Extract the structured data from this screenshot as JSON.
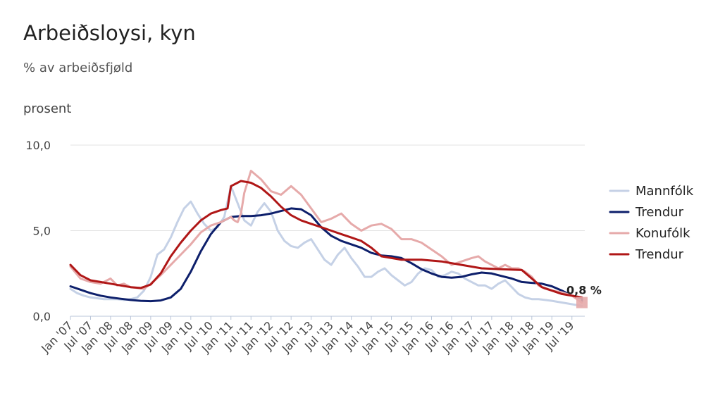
{
  "chart_data": {
    "type": "line",
    "title": "Arbeiðsloysi, kyn",
    "subtitle": "% av arbeiðsfjøld",
    "ylabel": "prosent",
    "ylim": [
      0,
      10
    ],
    "yticks": [
      "0,0",
      "5,0",
      "10,0"
    ],
    "yticks_values": [
      0,
      5,
      10
    ],
    "grid": true,
    "legend_position": "right",
    "x_labels": [
      "Jan '07",
      "Jul '07",
      "Jan '08",
      "Jul '08",
      "Jan '09",
      "Jul '09",
      "Jan '10",
      "Jul '10",
      "Jan '11",
      "Jul '11",
      "Jan '12",
      "Jul '12",
      "Jan '13",
      "Jul '13",
      "Jan '14",
      "Jul '14",
      "Jan '15",
      "Jul '15",
      "Jan '16",
      "Jul '16",
      "Jan '17",
      "Jul '17",
      "Jan '18",
      "Jul '18",
      "Jan '19",
      "Jul '19"
    ],
    "x_start": "2007-01",
    "x_end": "2019-10",
    "series": [
      {
        "name": "Mannfólk",
        "color": "#c5d1e6",
        "width": 3,
        "values": [
          1.6,
          1.35,
          1.2,
          1.1,
          1.05,
          1.0,
          1.0,
          1.0,
          0.95,
          1.0,
          1.1,
          1.5,
          2.3,
          3.6,
          3.9,
          4.6,
          5.5,
          6.3,
          6.7,
          6.0,
          5.4,
          5.0,
          5.2,
          5.8,
          7.6,
          6.6,
          5.6,
          5.3,
          6.1,
          6.6,
          6.1,
          5.0,
          4.4,
          4.1,
          4.0,
          4.3,
          4.5,
          3.9,
          3.3,
          3.0,
          3.6,
          4.0,
          3.4,
          2.9,
          2.3,
          2.3,
          2.6,
          2.8,
          2.4,
          2.1,
          1.8,
          2.0,
          2.5,
          2.8,
          2.7,
          2.3,
          2.4,
          2.6,
          2.5,
          2.2,
          2.0,
          1.8,
          1.8,
          1.6,
          1.9,
          2.1,
          1.7,
          1.3,
          1.1,
          1.0,
          1.0,
          0.95,
          0.9,
          0.6
        ],
        "dates": [
          "2007-01",
          "2007-03",
          "2007-05",
          "2007-07",
          "2007-09",
          "2007-11",
          "2008-01",
          "2008-03",
          "2008-05",
          "2008-07",
          "2008-09",
          "2008-11",
          "2009-01",
          "2009-03",
          "2009-05",
          "2009-07",
          "2009-09",
          "2009-11",
          "2010-01",
          "2010-03",
          "2010-05",
          "2010-07",
          "2010-09",
          "2010-11",
          "2011-01",
          "2011-03",
          "2011-05",
          "2011-07",
          "2011-09",
          "2011-11",
          "2012-01",
          "2012-03",
          "2012-05",
          "2012-07",
          "2012-09",
          "2012-11",
          "2013-01",
          "2013-03",
          "2013-05",
          "2013-07",
          "2013-09",
          "2013-11",
          "2014-01",
          "2014-03",
          "2014-05",
          "2014-07",
          "2014-09",
          "2014-11",
          "2015-01",
          "2015-03",
          "2015-05",
          "2015-07",
          "2015-09",
          "2015-11",
          "2016-01",
          "2016-03",
          "2016-05",
          "2016-07",
          "2016-09",
          "2016-11",
          "2017-01",
          "2017-03",
          "2017-05",
          "2017-07",
          "2017-09",
          "2017-11",
          "2018-01",
          "2018-03",
          "2018-05",
          "2018-07",
          "2018-09",
          "2018-11",
          "2019-01",
          "2019-10"
        ]
      },
      {
        "name": "Trendur",
        "color": "#0d1f6b",
        "width": 3,
        "values": [
          1.75,
          1.55,
          1.35,
          1.2,
          1.1,
          1.02,
          0.95,
          0.9,
          0.88,
          0.92,
          1.1,
          1.6,
          2.6,
          3.8,
          4.8,
          5.5,
          5.8,
          5.85,
          5.85,
          5.9,
          6.0,
          6.15,
          6.3,
          6.25,
          5.9,
          5.2,
          4.7,
          4.4,
          4.2,
          4.0,
          3.7,
          3.55,
          3.5,
          3.4,
          3.1,
          2.75,
          2.5,
          2.3,
          2.25,
          2.3,
          2.45,
          2.55,
          2.5,
          2.35,
          2.2,
          2.0,
          1.95,
          1.9,
          1.75,
          1.5,
          1.2,
          1.05,
          0.98,
          0.9
        ],
        "dates": [
          "2007-01",
          "2007-04",
          "2007-07",
          "2007-10",
          "2008-01",
          "2008-04",
          "2008-07",
          "2008-10",
          "2009-01",
          "2009-04",
          "2009-07",
          "2009-10",
          "2010-01",
          "2010-04",
          "2010-07",
          "2010-10",
          "2011-01",
          "2011-04",
          "2011-07",
          "2011-10",
          "2012-01",
          "2012-04",
          "2012-07",
          "2012-10",
          "2013-01",
          "2013-04",
          "2013-07",
          "2013-10",
          "2014-01",
          "2014-04",
          "2014-07",
          "2014-10",
          "2015-01",
          "2015-04",
          "2015-07",
          "2015-10",
          "2016-01",
          "2016-04",
          "2016-07",
          "2016-10",
          "2017-01",
          "2017-04",
          "2017-07",
          "2017-10",
          "2018-01",
          "2018-04",
          "2018-07",
          "2018-10",
          "2019-01",
          "2019-04",
          "2019-07",
          "2019-10",
          "2019-10",
          "2019-10"
        ]
      },
      {
        "name": "Konufólk",
        "color": "#e6aaaa",
        "width": 3,
        "values": [
          2.9,
          2.2,
          2.0,
          1.9,
          2.2,
          1.8,
          1.9,
          1.7,
          1.65,
          1.6,
          1.9,
          2.4,
          3.0,
          3.6,
          4.2,
          4.9,
          5.3,
          5.5,
          5.8,
          5.6,
          5.5,
          6.0,
          7.2,
          8.5,
          8.0,
          7.3,
          7.1,
          7.6,
          7.1,
          6.3,
          5.5,
          5.7,
          6.0,
          5.4,
          5.0,
          5.3,
          5.4,
          5.1,
          4.5,
          4.5,
          4.3,
          3.9,
          3.5,
          3.0,
          3.2,
          3.4,
          3.5,
          3.2,
          3.0,
          2.8,
          3.0,
          2.8,
          2.8,
          2.6,
          2.3,
          1.8,
          1.6,
          1.5,
          1.4,
          1.2,
          0.8
        ],
        "dates": [
          "2007-01",
          "2007-04",
          "2007-07",
          "2007-10",
          "2008-01",
          "2008-03",
          "2008-05",
          "2008-07",
          "2008-09",
          "2008-11",
          "2009-01",
          "2009-04",
          "2009-07",
          "2009-10",
          "2010-01",
          "2010-04",
          "2010-07",
          "2010-10",
          "2011-01",
          "2011-02",
          "2011-03",
          "2011-04",
          "2011-05",
          "2011-07",
          "2011-10",
          "2012-01",
          "2012-04",
          "2012-07",
          "2012-10",
          "2013-01",
          "2013-04",
          "2013-07",
          "2013-10",
          "2014-01",
          "2014-04",
          "2014-07",
          "2014-10",
          "2015-01",
          "2015-04",
          "2015-07",
          "2015-10",
          "2016-01",
          "2016-04",
          "2016-07",
          "2016-10",
          "2017-01",
          "2017-03",
          "2017-05",
          "2017-07",
          "2017-09",
          "2017-11",
          "2018-01",
          "2018-03",
          "2018-05",
          "2018-07",
          "2018-09",
          "2018-11",
          "2019-01",
          "2019-04",
          "2019-07",
          "2019-10"
        ]
      },
      {
        "name": "Trendur",
        "color": "#b01717",
        "width": 3,
        "values": [
          3.0,
          2.4,
          2.1,
          2.0,
          1.9,
          1.8,
          1.7,
          1.65,
          1.85,
          2.5,
          3.5,
          4.3,
          5.0,
          5.6,
          6.0,
          6.2,
          6.3,
          7.6,
          7.9,
          7.8,
          7.5,
          7.0,
          6.4,
          5.9,
          5.6,
          5.4,
          5.2,
          5.0,
          4.8,
          4.6,
          4.4,
          4.0,
          3.5,
          3.3,
          3.3,
          3.2,
          3.0,
          2.8,
          2.75,
          2.7,
          2.2,
          1.7,
          1.5,
          1.3,
          1.1
        ],
        "dates": [
          "2007-01",
          "2007-04",
          "2007-07",
          "2007-10",
          "2008-01",
          "2008-04",
          "2008-07",
          "2008-10",
          "2009-01",
          "2009-04",
          "2009-07",
          "2009-10",
          "2010-01",
          "2010-04",
          "2010-07",
          "2010-10",
          "2010-12",
          "2011-01",
          "2011-04",
          "2011-07",
          "2011-10",
          "2012-01",
          "2012-04",
          "2012-07",
          "2012-10",
          "2013-01",
          "2013-04",
          "2013-07",
          "2013-10",
          "2014-01",
          "2014-04",
          "2014-07",
          "2014-10",
          "2015-04",
          "2015-10",
          "2016-04",
          "2016-10",
          "2017-04",
          "2017-10",
          "2018-04",
          "2018-07",
          "2018-10",
          "2019-01",
          "2019-04",
          "2019-10"
        ]
      }
    ],
    "annotation": {
      "text": "0,8 %",
      "date": "2019-10",
      "value": 0.8,
      "marker_color": "#e6aaaa"
    }
  }
}
